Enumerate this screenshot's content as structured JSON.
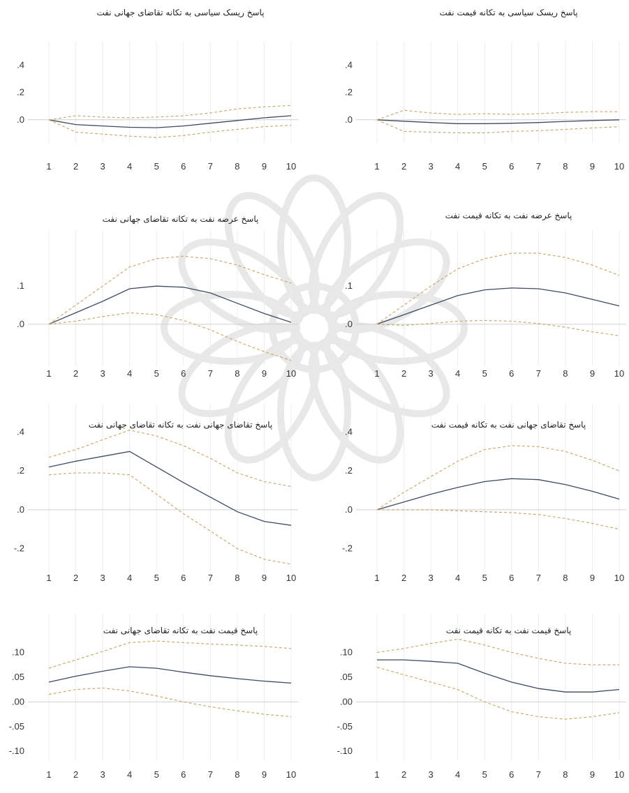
{
  "chart_data": [
    {
      "type": "line",
      "title": "پاسخ ریسک سیاسی به تکانه تقاضای جهانی نفت",
      "x": [
        1,
        2,
        3,
        4,
        5,
        6,
        7,
        8,
        9,
        10
      ],
      "x_tick_labels": [
        "1",
        "2",
        "3",
        "4",
        "5",
        "6",
        "7",
        "8",
        "9",
        "10"
      ],
      "y_ticks": [
        0.0,
        0.2,
        0.4
      ],
      "y_tick_labels": [
        ".0",
        ".2",
        ".4"
      ],
      "ylim": [
        -0.17,
        0.47
      ],
      "series": [
        {
          "role": "response",
          "values": [
            0.0,
            -0.035,
            -0.045,
            -0.055,
            -0.058,
            -0.045,
            -0.025,
            -0.005,
            0.015,
            0.03
          ]
        },
        {
          "role": "upper",
          "values": [
            0.0,
            0.03,
            0.02,
            0.015,
            0.02,
            0.03,
            0.05,
            0.08,
            0.095,
            0.105
          ]
        },
        {
          "role": "lower",
          "values": [
            0.0,
            -0.09,
            -0.105,
            -0.12,
            -0.13,
            -0.115,
            -0.09,
            -0.07,
            -0.05,
            -0.04
          ]
        }
      ]
    },
    {
      "type": "line",
      "title": "پاسخ ریسک سیاسی به تکانه قیمت نفت",
      "x": [
        1,
        2,
        3,
        4,
        5,
        6,
        7,
        8,
        9,
        10
      ],
      "x_tick_labels": [
        "1",
        "2",
        "3",
        "4",
        "5",
        "6",
        "7",
        "8",
        "9",
        "10"
      ],
      "y_ticks": [
        0.0,
        0.2,
        0.4
      ],
      "y_tick_labels": [
        ".0",
        ".2",
        ".4"
      ],
      "ylim": [
        -0.17,
        0.47
      ],
      "series": [
        {
          "role": "response",
          "values": [
            0.0,
            -0.01,
            -0.02,
            -0.028,
            -0.028,
            -0.025,
            -0.02,
            -0.012,
            -0.005,
            0.0
          ]
        },
        {
          "role": "upper",
          "values": [
            0.0,
            0.07,
            0.05,
            0.04,
            0.045,
            0.04,
            0.045,
            0.055,
            0.06,
            0.06
          ]
        },
        {
          "role": "lower",
          "values": [
            0.0,
            -0.085,
            -0.09,
            -0.095,
            -0.095,
            -0.085,
            -0.08,
            -0.07,
            -0.06,
            -0.05
          ]
        }
      ]
    },
    {
      "type": "line",
      "title": "پاسخ عرضه نفت به تکانه تقاضای جهانی نفت",
      "x": [
        1,
        2,
        3,
        4,
        5,
        6,
        7,
        8,
        9,
        10
      ],
      "x_tick_labels": [
        "1",
        "2",
        "3",
        "4",
        "5",
        "6",
        "7",
        "8",
        "9",
        "10"
      ],
      "y_ticks": [
        0.0,
        0.1
      ],
      "y_tick_labels": [
        ".0",
        ".1"
      ],
      "ylim": [
        -0.11,
        0.21
      ],
      "series": [
        {
          "role": "response",
          "values": [
            0.0,
            0.03,
            0.06,
            0.093,
            0.1,
            0.097,
            0.082,
            0.055,
            0.028,
            0.005
          ]
        },
        {
          "role": "upper",
          "values": [
            0.0,
            0.05,
            0.1,
            0.15,
            0.172,
            0.178,
            0.172,
            0.155,
            0.13,
            0.108
          ]
        },
        {
          "role": "lower",
          "values": [
            0.0,
            0.008,
            0.02,
            0.03,
            0.025,
            0.01,
            -0.015,
            -0.045,
            -0.072,
            -0.095
          ]
        }
      ]
    },
    {
      "type": "line",
      "title": "پاسخ عرضه نفت به تکانه قیمت نفت",
      "x": [
        1,
        2,
        3,
        4,
        5,
        6,
        7,
        8,
        9,
        10
      ],
      "x_tick_labels": [
        "1",
        "2",
        "3",
        "4",
        "5",
        "6",
        "7",
        "8",
        "9",
        "10"
      ],
      "y_ticks": [
        0.0,
        0.1
      ],
      "y_tick_labels": [
        ".0",
        ".1"
      ],
      "ylim": [
        -0.11,
        0.21
      ],
      "series": [
        {
          "role": "response",
          "values": [
            0.0,
            0.025,
            0.05,
            0.075,
            0.09,
            0.095,
            0.093,
            0.082,
            0.065,
            0.048
          ]
        },
        {
          "role": "upper",
          "values": [
            0.0,
            0.05,
            0.1,
            0.145,
            0.172,
            0.186,
            0.186,
            0.175,
            0.155,
            0.128
          ]
        },
        {
          "role": "lower",
          "values": [
            0.0,
            -0.003,
            0.002,
            0.008,
            0.01,
            0.008,
            0.002,
            -0.008,
            -0.02,
            -0.03
          ]
        }
      ]
    },
    {
      "type": "line",
      "title": "پاسخ تقاضای جهانی نفت به تکانه تقاضای جهانی نفت",
      "x": [
        1,
        2,
        3,
        4,
        5,
        6,
        7,
        8,
        9,
        10
      ],
      "x_tick_labels": [
        "1",
        "2",
        "3",
        "4",
        "5",
        "6",
        "7",
        "8",
        "9",
        "10"
      ],
      "y_ticks": [
        -0.2,
        0.0,
        0.2,
        0.4
      ],
      "y_tick_labels": [
        "-.2",
        ".0",
        ".2",
        ".4"
      ],
      "ylim": [
        -0.32,
        0.47
      ],
      "series": [
        {
          "role": "response",
          "values": [
            0.22,
            0.25,
            0.275,
            0.3,
            0.22,
            0.14,
            0.065,
            -0.01,
            -0.06,
            -0.08
          ]
        },
        {
          "role": "upper",
          "values": [
            0.27,
            0.31,
            0.36,
            0.41,
            0.38,
            0.33,
            0.265,
            0.19,
            0.145,
            0.12
          ]
        },
        {
          "role": "lower",
          "values": [
            0.18,
            0.19,
            0.19,
            0.18,
            0.08,
            -0.02,
            -0.11,
            -0.2,
            -0.255,
            -0.28
          ]
        }
      ]
    },
    {
      "type": "line",
      "title": "پاسخ تقاضای جهانی نفت به تکانه قیمت نفت",
      "x": [
        1,
        2,
        3,
        4,
        5,
        6,
        7,
        8,
        9,
        10
      ],
      "x_tick_labels": [
        "1",
        "2",
        "3",
        "4",
        "5",
        "6",
        "7",
        "8",
        "9",
        "10"
      ],
      "y_ticks": [
        -0.2,
        0.0,
        0.2,
        0.4
      ],
      "y_tick_labels": [
        "-.2",
        ".0",
        ".2",
        ".4"
      ],
      "ylim": [
        -0.32,
        0.47
      ],
      "series": [
        {
          "role": "response",
          "values": [
            0.0,
            0.04,
            0.08,
            0.115,
            0.145,
            0.16,
            0.155,
            0.13,
            0.095,
            0.055
          ]
        },
        {
          "role": "upper",
          "values": [
            0.0,
            0.09,
            0.17,
            0.25,
            0.31,
            0.33,
            0.325,
            0.3,
            0.255,
            0.2
          ]
        },
        {
          "role": "lower",
          "values": [
            0.0,
            0.0,
            0.0,
            -0.005,
            -0.01,
            -0.015,
            -0.025,
            -0.045,
            -0.07,
            -0.1
          ]
        }
      ]
    },
    {
      "type": "line",
      "title": "پاسخ قیمت نفت به تکانه تقاضای جهانی نفت",
      "x": [
        1,
        2,
        3,
        4,
        5,
        6,
        7,
        8,
        9,
        10
      ],
      "x_tick_labels": [
        "1",
        "2",
        "3",
        "4",
        "5",
        "6",
        "7",
        "8",
        "9",
        "10"
      ],
      "y_ticks": [
        -0.1,
        -0.05,
        0.0,
        0.05,
        0.1
      ],
      "y_tick_labels": [
        "-.10",
        "-.05",
        ".00",
        ".05",
        ".10"
      ],
      "ylim": [
        -0.118,
        0.15
      ],
      "series": [
        {
          "role": "response",
          "values": [
            0.04,
            0.052,
            0.062,
            0.071,
            0.068,
            0.06,
            0.053,
            0.047,
            0.042,
            0.038
          ]
        },
        {
          "role": "upper",
          "values": [
            0.068,
            0.085,
            0.102,
            0.12,
            0.123,
            0.12,
            0.117,
            0.115,
            0.112,
            0.108
          ]
        },
        {
          "role": "lower",
          "values": [
            0.015,
            0.025,
            0.028,
            0.022,
            0.012,
            0.0,
            -0.01,
            -0.018,
            -0.025,
            -0.03
          ]
        }
      ]
    },
    {
      "type": "line",
      "title": "پاسخ قیمت نفت به تکانه قیمت نفت",
      "x": [
        1,
        2,
        3,
        4,
        5,
        6,
        7,
        8,
        9,
        10
      ],
      "x_tick_labels": [
        "1",
        "2",
        "3",
        "4",
        "5",
        "6",
        "7",
        "8",
        "9",
        "10"
      ],
      "y_ticks": [
        -0.1,
        -0.05,
        0.0,
        0.05,
        0.1
      ],
      "y_tick_labels": [
        "-.10",
        "-.05",
        ".00",
        ".05",
        ".10"
      ],
      "ylim": [
        -0.118,
        0.15
      ],
      "series": [
        {
          "role": "response",
          "values": [
            0.085,
            0.085,
            0.082,
            0.078,
            0.058,
            0.04,
            0.027,
            0.02,
            0.02,
            0.025
          ]
        },
        {
          "role": "upper",
          "values": [
            0.1,
            0.108,
            0.118,
            0.127,
            0.115,
            0.1,
            0.088,
            0.078,
            0.075,
            0.075
          ]
        },
        {
          "role": "lower",
          "values": [
            0.07,
            0.055,
            0.04,
            0.025,
            0.0,
            -0.02,
            -0.03,
            -0.035,
            -0.03,
            -0.022
          ]
        }
      ]
    }
  ]
}
